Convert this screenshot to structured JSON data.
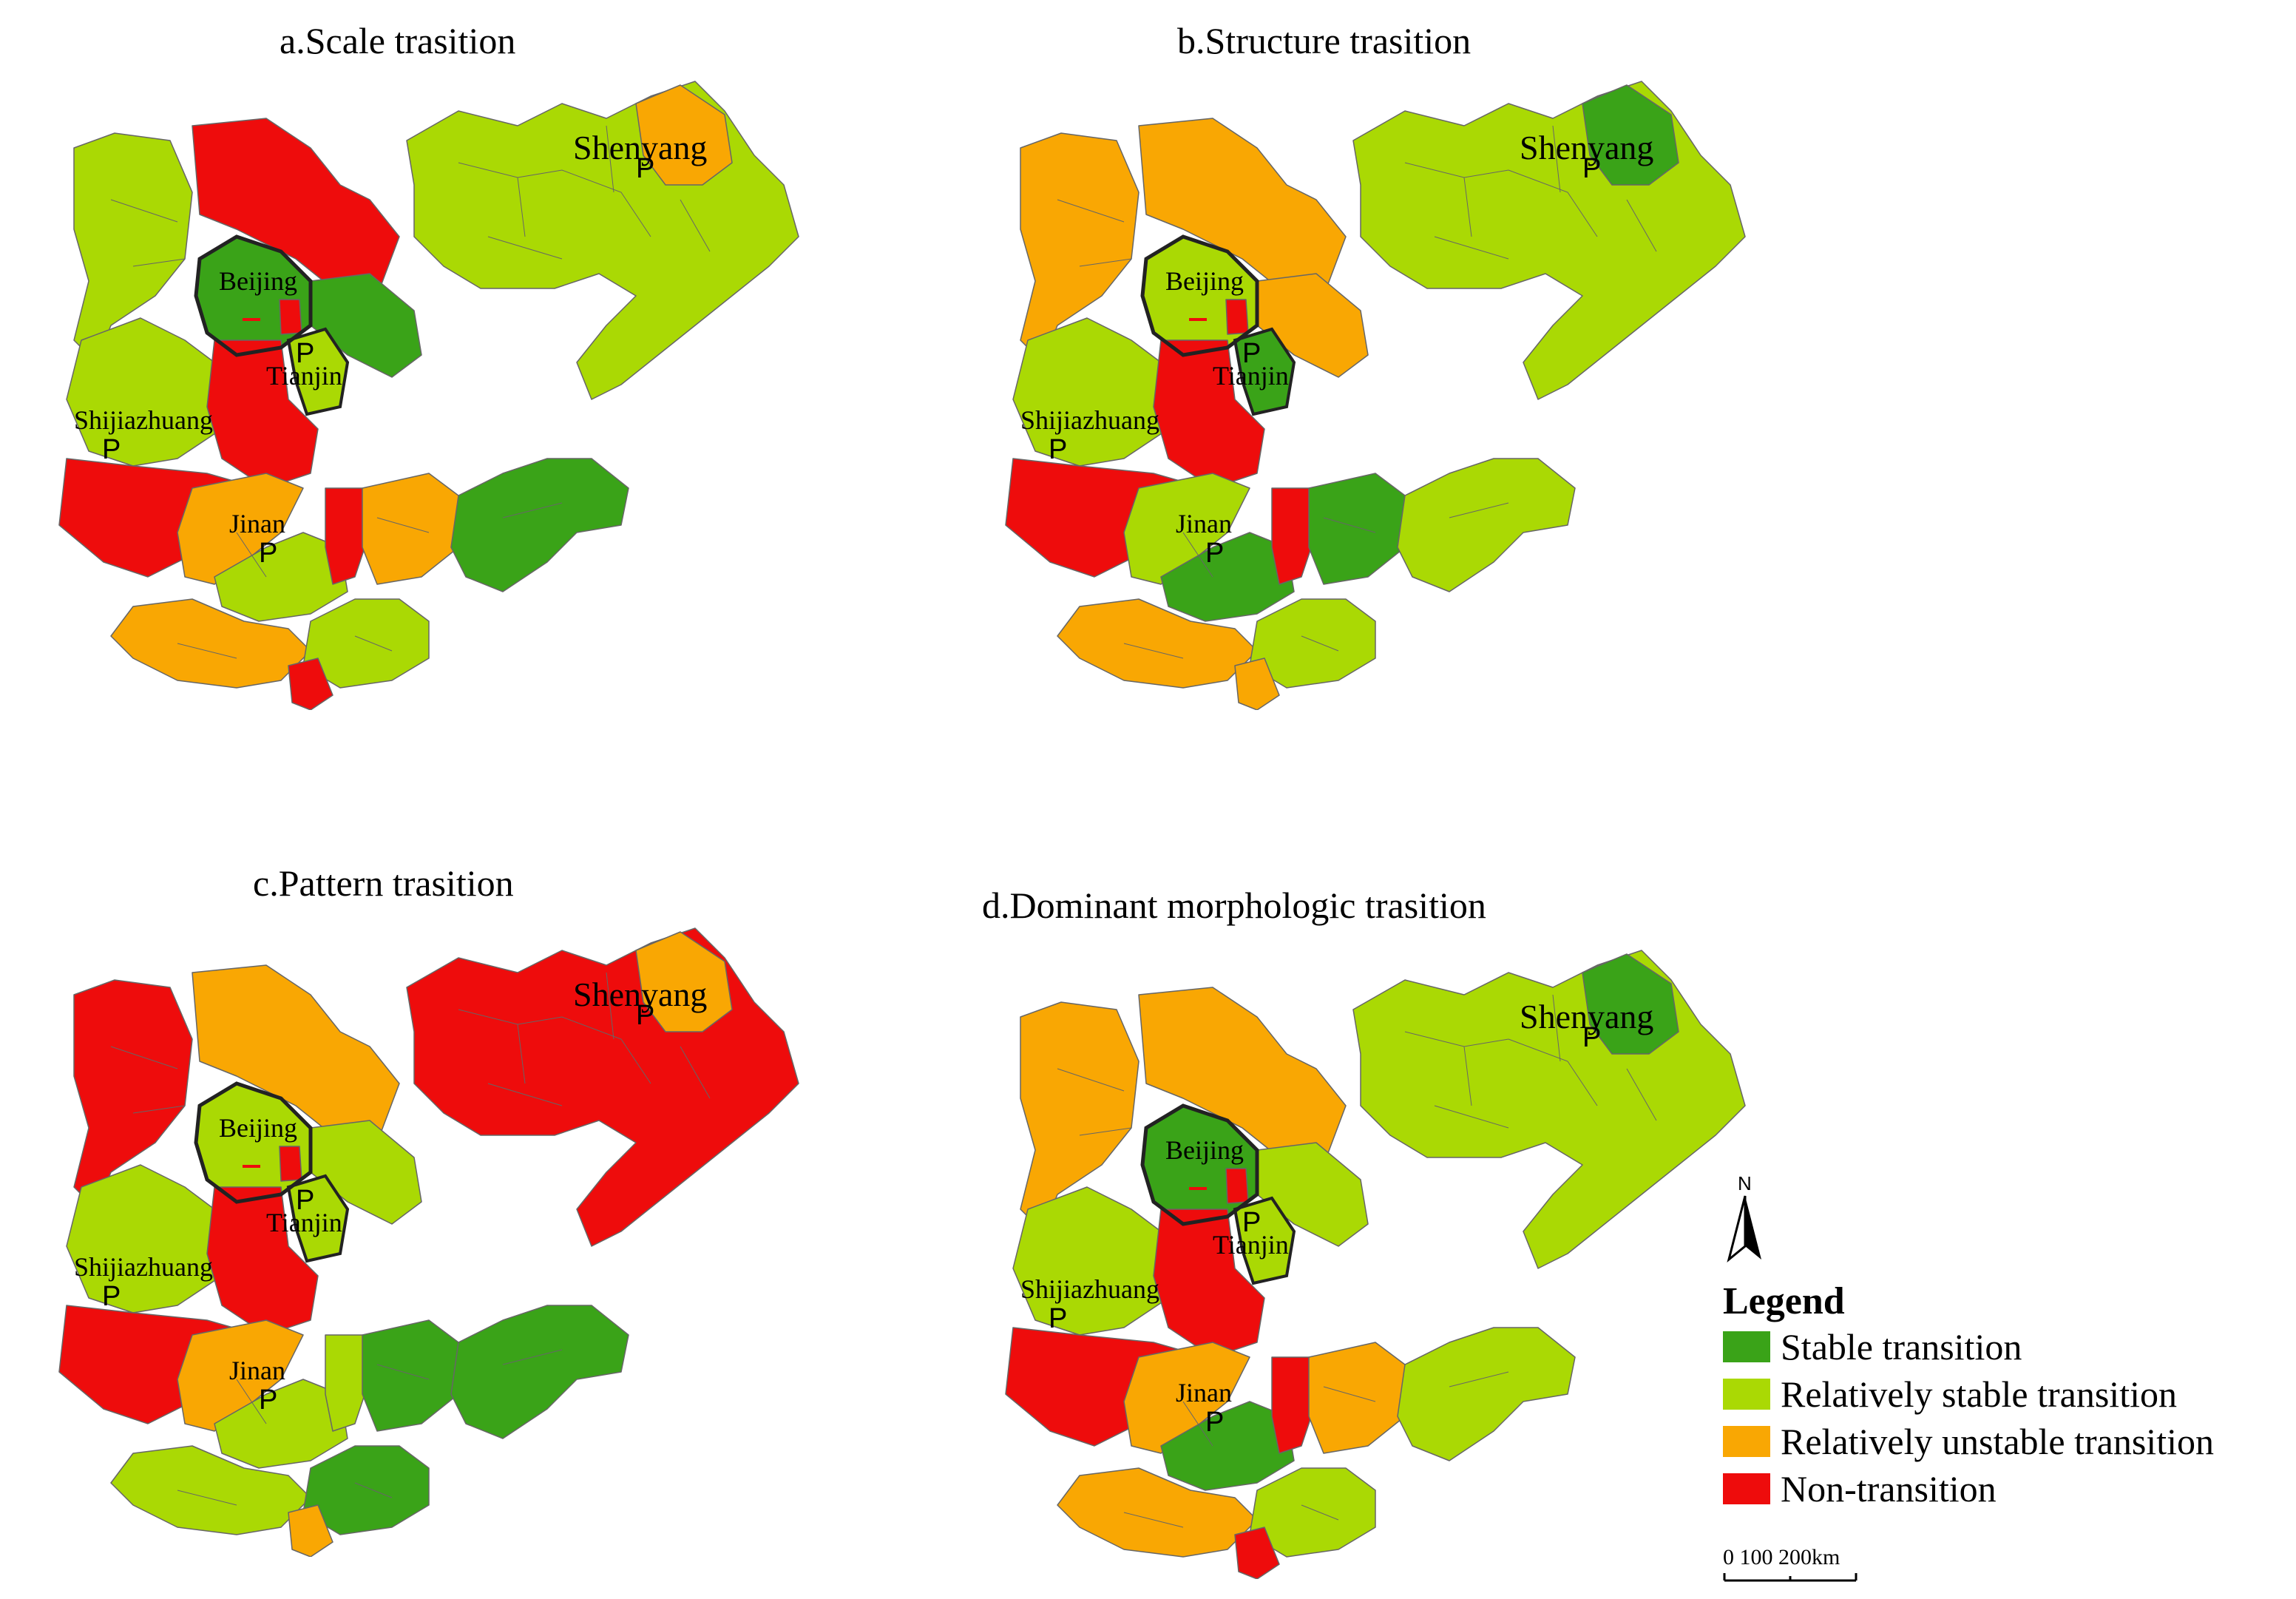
{
  "colors": {
    "stable": "#3aa318",
    "relatively_stable": "#aad904",
    "relatively_unstable": "#f9a703",
    "non_transition": "#ee0c0c",
    "boundary": "#222222",
    "internal": "#666666"
  },
  "panels": [
    {
      "id": "a",
      "title": "a.Scale trasition",
      "cities": [
        "Beijing",
        "Tianjin",
        "Shijiazhuang",
        "Jinan",
        "Shenyang"
      ],
      "capital_marker": "P",
      "region_classes": {
        "nw": "relatively_stable",
        "north": "non_transition",
        "beijing": "stable",
        "ne_beijing": "stable",
        "capital_core": "non_transition",
        "tianjin": "relatively_stable",
        "west_hebei": "relatively_stable",
        "mid_hebei": "non_transition",
        "sw_hebei": "non_transition",
        "liaoning": "relatively_stable",
        "shenyang": "relatively_unstable",
        "sd_west": "relatively_unstable",
        "sd_central": "relatively_stable",
        "sd_mid_red": "non_transition",
        "sd_mid_orange": "relatively_unstable",
        "sd_east": "stable",
        "sd_south": "relatively_unstable",
        "sd_south_green": "relatively_stable",
        "sd_south_red": "non_transition"
      }
    },
    {
      "id": "b",
      "title": "b.Structure trasition",
      "cities": [
        "Beijing",
        "Tianjin",
        "Shijiazhuang",
        "Jinan",
        "Shenyang"
      ],
      "capital_marker": "P",
      "region_classes": {
        "nw": "relatively_unstable",
        "north": "relatively_unstable",
        "beijing": "relatively_stable",
        "ne_beijing": "relatively_unstable",
        "capital_core": "non_transition",
        "tianjin": "stable",
        "west_hebei": "relatively_stable",
        "mid_hebei": "non_transition",
        "sw_hebei": "non_transition",
        "liaoning": "relatively_stable",
        "shenyang": "stable",
        "sd_west": "relatively_stable",
        "sd_central": "stable",
        "sd_mid_red": "non_transition",
        "sd_mid_orange": "stable",
        "sd_east": "relatively_stable",
        "sd_south": "relatively_unstable",
        "sd_south_green": "relatively_stable",
        "sd_south_red": "relatively_unstable"
      }
    },
    {
      "id": "c",
      "title": "c.Pattern trasition",
      "cities": [
        "Beijing",
        "Tianjin",
        "Shijiazhuang",
        "Jinan",
        "Shenyang"
      ],
      "capital_marker": "P",
      "region_classes": {
        "nw": "non_transition",
        "north": "relatively_unstable",
        "beijing": "relatively_stable",
        "ne_beijing": "relatively_stable",
        "capital_core": "non_transition",
        "tianjin": "relatively_stable",
        "west_hebei": "relatively_stable",
        "mid_hebei": "non_transition",
        "sw_hebei": "non_transition",
        "liaoning": "non_transition",
        "shenyang": "relatively_unstable",
        "sd_west": "relatively_unstable",
        "sd_central": "relatively_stable",
        "sd_mid_red": "relatively_stable",
        "sd_mid_orange": "stable",
        "sd_east": "stable",
        "sd_south": "relatively_stable",
        "sd_south_green": "stable",
        "sd_south_red": "relatively_unstable"
      }
    },
    {
      "id": "d",
      "title": "d.Dominant morphologic trasition",
      "cities": [
        "Beijing",
        "Tianjin",
        "Shijiazhuang",
        "Jinan",
        "Shenyang"
      ],
      "capital_marker": "P",
      "region_classes": {
        "nw": "relatively_unstable",
        "north": "relatively_unstable",
        "beijing": "stable",
        "ne_beijing": "relatively_stable",
        "capital_core": "non_transition",
        "tianjin": "relatively_stable",
        "west_hebei": "relatively_stable",
        "mid_hebei": "non_transition",
        "sw_hebei": "non_transition",
        "liaoning": "relatively_stable",
        "shenyang": "stable",
        "sd_west": "relatively_unstable",
        "sd_central": "stable",
        "sd_mid_red": "non_transition",
        "sd_mid_orange": "relatively_unstable",
        "sd_east": "relatively_stable",
        "sd_south": "relatively_unstable",
        "sd_south_green": "relatively_stable",
        "sd_south_red": "non_transition"
      }
    }
  ],
  "legend": {
    "title": "Legend",
    "items": [
      {
        "key": "stable",
        "label": "Stable transition"
      },
      {
        "key": "relatively_stable",
        "label": "Relatively stable transition"
      },
      {
        "key": "relatively_unstable",
        "label": "Relatively unstable transition"
      },
      {
        "key": "non_transition",
        "label": "Non-transition"
      }
    ]
  },
  "north_arrow": {
    "label": "N",
    "icon": "north-arrow-icon"
  },
  "scale_bar": {
    "label": "0    100  200km"
  }
}
